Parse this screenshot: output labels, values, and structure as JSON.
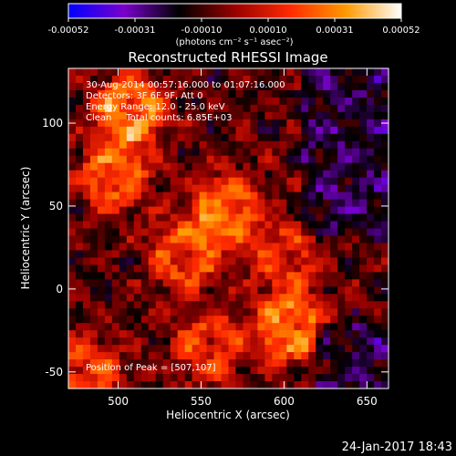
{
  "chart_data": {
    "type": "heatmap",
    "title": "Reconstructed RHESSI Image",
    "xlabel": "Heliocentric X (arcsec)",
    "ylabel": "Heliocentric Y (arcsec)",
    "xlim": [
      470,
      663
    ],
    "ylim": [
      -60,
      133
    ],
    "x_ticks": [
      500,
      550,
      600,
      650
    ],
    "y_ticks": [
      -50,
      0,
      50,
      100
    ],
    "colorbar": {
      "unit_label": "(photons cm⁻² s⁻¹ asec⁻²)",
      "range": [
        -0.00052,
        0.00052
      ],
      "ticks": [
        "-0.00052",
        "-0.00031",
        "-0.00010",
        "0.00010",
        "0.00031",
        "0.00052"
      ],
      "colors": [
        "#0000ff",
        "#7a00cc",
        "#000000",
        "#990000",
        "#ff2a00",
        "#ff9900",
        "#ffffff"
      ]
    },
    "annotations": [
      "30-Aug-2014 00:57:16.000 to 01:07:16.000",
      "Detectors: 3F 6F 9F, Att 0",
      "Energy Range: 12.0 - 25.0 keV",
      "Clean     Total counts: 6.85E+03"
    ],
    "peak_label": "Position of Peak = [507,107]",
    "peak": [
      507,
      107
    ],
    "bright_sources": [
      {
        "x": 507,
        "y": 107,
        "strength": 1.0
      },
      {
        "x": 498,
        "y": 68,
        "strength": 0.8
      },
      {
        "x": 565,
        "y": 48,
        "strength": 0.85
      },
      {
        "x": 540,
        "y": 20,
        "strength": 0.7
      },
      {
        "x": 603,
        "y": -23,
        "strength": 0.95
      },
      {
        "x": 600,
        "y": 20,
        "strength": 0.55
      },
      {
        "x": 480,
        "y": -50,
        "strength": 0.75
      },
      {
        "x": 555,
        "y": -35,
        "strength": 0.65
      }
    ]
  },
  "footer_date": "24-Jan-2017 18:43"
}
